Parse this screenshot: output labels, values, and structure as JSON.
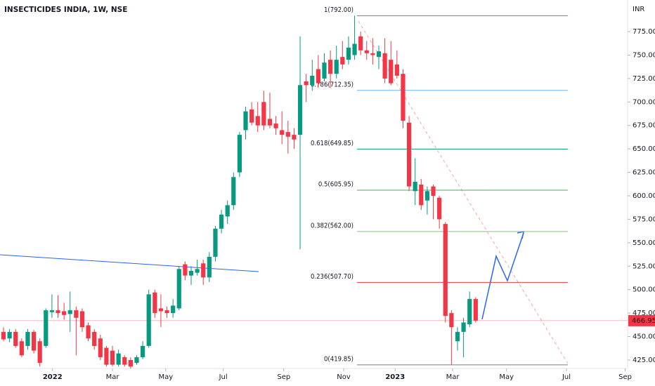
{
  "chart_data": {
    "type": "candlestick",
    "title": "INSECTICIDES INDIA, 1W, NSE",
    "currency": "INR",
    "up_color": "#089981",
    "down_color": "#f23645",
    "open": [
      455,
      448,
      455,
      445,
      440,
      455,
      445,
      440,
      476,
      478,
      477,
      474,
      478,
      477,
      462,
      455,
      448,
      438,
      435,
      420,
      428,
      425,
      422,
      428,
      440,
      497,
      480,
      478,
      475,
      480,
      527,
      515,
      518,
      528,
      513,
      535,
      565,
      578,
      590,
      625,
      670,
      692,
      685,
      700,
      682,
      677,
      670,
      668,
      665,
      665,
      722,
      718,
      735,
      725,
      745,
      730,
      748,
      745,
      750,
      770,
      755,
      752,
      748,
      752,
      745,
      740,
      730,
      678,
      605,
      612,
      595,
      610,
      598,
      570,
      475,
      445,
      455,
      463,
      490
    ],
    "high": [
      460,
      458,
      458,
      448,
      458,
      457,
      448,
      480,
      495,
      494,
      486,
      498,
      482,
      480,
      465,
      458,
      452,
      440,
      440,
      436,
      430,
      428,
      430,
      445,
      500,
      500,
      495,
      482,
      490,
      525,
      530,
      525,
      532,
      532,
      540,
      568,
      585,
      595,
      625,
      668,
      695,
      700,
      700,
      712,
      710,
      685,
      690,
      680,
      672,
      770,
      730,
      745,
      750,
      752,
      755,
      760,
      765,
      770,
      792,
      775,
      765,
      768,
      760,
      768,
      765,
      755,
      735,
      685,
      640,
      618,
      610,
      612,
      600,
      572,
      478,
      460,
      470,
      498,
      492
    ],
    "low": [
      445,
      444,
      438,
      428,
      436,
      432,
      418,
      438,
      470,
      470,
      468,
      455,
      430,
      455,
      445,
      436,
      425,
      418,
      418,
      418,
      418,
      416,
      420,
      426,
      438,
      470,
      460,
      470,
      470,
      478,
      510,
      505,
      515,
      505,
      508,
      530,
      560,
      570,
      585,
      620,
      660,
      675,
      668,
      670,
      672,
      665,
      655,
      645,
      650,
      543,
      700,
      712,
      715,
      722,
      715,
      725,
      735,
      740,
      745,
      750,
      745,
      740,
      735,
      720,
      718,
      725,
      672,
      605,
      590,
      585,
      580,
      575,
      565,
      465,
      420,
      435,
      428,
      460,
      465
    ],
    "close": [
      447,
      455,
      440,
      430,
      455,
      435,
      422,
      478,
      478,
      475,
      473,
      478,
      470,
      460,
      448,
      440,
      428,
      420,
      420,
      432,
      420,
      418,
      428,
      440,
      495,
      475,
      477,
      475,
      483,
      522,
      515,
      520,
      522,
      513,
      535,
      565,
      580,
      590,
      620,
      665,
      690,
      678,
      675,
      675,
      675,
      672,
      665,
      663,
      660,
      718,
      718,
      728,
      720,
      742,
      730,
      745,
      740,
      758,
      762,
      755,
      752,
      750,
      754,
      725,
      720,
      728,
      680,
      610,
      615,
      590,
      605,
      600,
      575,
      472,
      460,
      455,
      465,
      490,
      467
    ],
    "xlim": [
      -0.58,
      103.1
    ],
    "xticks": [
      {
        "value": 8.1,
        "label": "2022"
      },
      {
        "value": 18.0,
        "label": "Mar"
      },
      {
        "value": 26.8,
        "label": "May"
      },
      {
        "value": 36.3,
        "label": "Jul"
      },
      {
        "value": 46.3,
        "label": "Sep"
      },
      {
        "value": 56.2,
        "label": "Nov"
      },
      {
        "value": 64.7,
        "label": "2023"
      },
      {
        "value": 74.2,
        "label": "Mar"
      },
      {
        "value": 83.1,
        "label": "May"
      },
      {
        "value": 93.0,
        "label": "Jul"
      },
      {
        "value": 102.7,
        "label": "Sep"
      }
    ],
    "ylim": [
      416,
      808.7
    ],
    "yticks": [
      {
        "value": 425,
        "label": "425.00"
      },
      {
        "value": 450,
        "label": "450.00"
      },
      {
        "value": 475,
        "label": "475.00"
      },
      {
        "value": 500,
        "label": "500.00"
      },
      {
        "value": 525,
        "label": "525.00"
      },
      {
        "value": 550,
        "label": "550.00"
      },
      {
        "value": 575,
        "label": "575.00"
      },
      {
        "value": 600,
        "label": "600.00"
      },
      {
        "value": 625,
        "label": "625.00"
      },
      {
        "value": 650,
        "label": "650.00"
      },
      {
        "value": 675,
        "label": "675.00"
      },
      {
        "value": 700,
        "label": "700.00"
      },
      {
        "value": 725,
        "label": "725.00"
      },
      {
        "value": 750,
        "label": "750.00"
      },
      {
        "value": 775,
        "label": "775.00"
      }
    ],
    "fib_levels": [
      {
        "value": 792.0,
        "label": "1(792.00)",
        "color": "#787b86"
      },
      {
        "value": 712.35,
        "label": "0.786(712.35)",
        "color": "#64b5f6"
      },
      {
        "value": 649.85,
        "label": "0.618(649.85)",
        "color": "#089981"
      },
      {
        "value": 605.95,
        "label": "0.5(605.95)",
        "color": "#4caf50"
      },
      {
        "value": 562.0,
        "label": "0.382(562.00)",
        "color": "#81c784"
      },
      {
        "value": 507.7,
        "label": "0.236(507.70)",
        "color": "#f23645"
      },
      {
        "value": 419.85,
        "label": "0(419.85)",
        "color": "#787b86"
      }
    ],
    "last_price": 466.95
  }
}
